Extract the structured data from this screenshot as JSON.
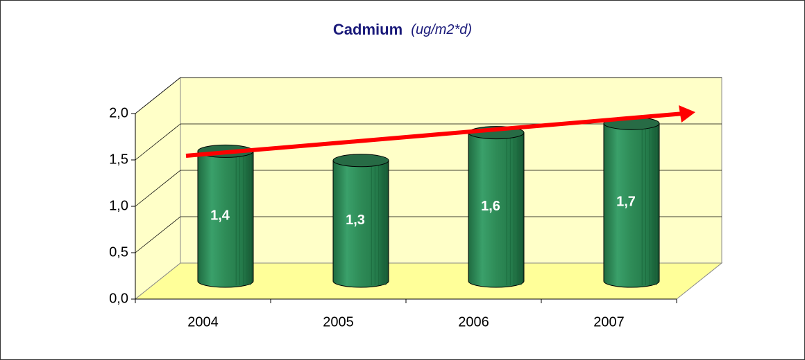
{
  "chart_data": {
    "type": "bar",
    "title": "Cadmium",
    "unit": "(ug/m2*d)",
    "categories": [
      "2004",
      "2005",
      "2006",
      "2007"
    ],
    "values": [
      1.4,
      1.3,
      1.6,
      1.7
    ],
    "value_labels": [
      "1,4",
      "1,3",
      "1,6",
      "1,7"
    ],
    "color": "#2e8b57",
    "ylim": [
      0,
      2
    ],
    "yticks": [
      {
        "value": 0,
        "label": "0,0"
      },
      {
        "value": 0.5,
        "label": "0,5"
      },
      {
        "value": 1,
        "label": "1,0"
      },
      {
        "value": 1.5,
        "label": "1,5"
      },
      {
        "value": 2,
        "label": "2,0"
      }
    ],
    "grid": true
  }
}
